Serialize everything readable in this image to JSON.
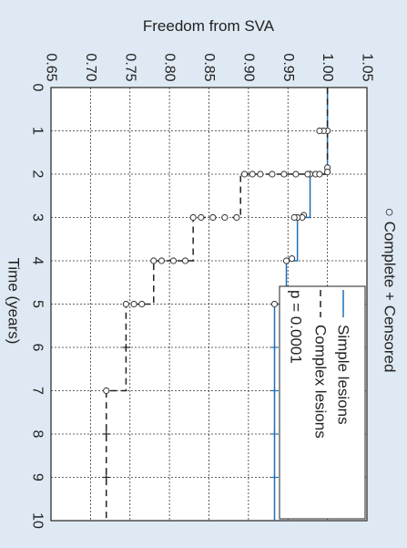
{
  "chart_data": {
    "type": "line",
    "title": "Freedom from SVA",
    "xlabel": "Time (years)",
    "ylabel": "",
    "xlim": [
      0,
      10
    ],
    "ylim": [
      0.65,
      1.05
    ],
    "x_ticks": [
      "0",
      "1",
      "2",
      "3",
      "4",
      "5",
      "6",
      "7",
      "8",
      "9",
      "10"
    ],
    "y_ticks": [
      "0.65",
      "0.70",
      "0.75",
      "0.80",
      "0.85",
      "0.90",
      "0.95",
      "1.00",
      "1.05"
    ],
    "grid": true,
    "orientation": "rotated 90 degrees clockwise",
    "marker_legend": [
      {
        "symbol": "○",
        "label": "Complete"
      },
      {
        "symbol": "+",
        "label": "Censored"
      }
    ],
    "legend": {
      "placement": "bottom-right",
      "entries": [
        "Simple lesions",
        "Complex lesions"
      ],
      "pvalue": "p = 0.0001"
    },
    "series": [
      {
        "name": "Simple lesions",
        "style": "solid",
        "color": "#1f6fb5",
        "steps": [
          [
            0,
            1.0
          ],
          [
            2.0,
            0.978
          ],
          [
            3.0,
            0.962
          ],
          [
            4.0,
            0.948
          ],
          [
            5.0,
            0.933
          ],
          [
            10.0,
            0.933
          ]
        ],
        "complete": [
          [
            1.0,
            1.0
          ],
          [
            1.85,
            1.0
          ],
          [
            1.95,
            1.0
          ],
          [
            2.0,
            0.985
          ],
          [
            2.0,
            0.978
          ],
          [
            2.95,
            0.97
          ],
          [
            3.0,
            0.968
          ],
          [
            3.0,
            0.962
          ],
          [
            3.0,
            0.958
          ],
          [
            3.95,
            0.955
          ],
          [
            4.0,
            0.948
          ],
          [
            5.0,
            0.933
          ]
        ],
        "censored": [
          [
            6.0,
            0.933
          ],
          [
            7.0,
            0.933
          ],
          [
            8.0,
            0.933
          ],
          [
            9.0,
            0.933
          ]
        ]
      },
      {
        "name": "Complex lesions",
        "style": "dashed",
        "color": "#222222",
        "steps": [
          [
            0,
            1.0
          ],
          [
            2.0,
            0.89
          ],
          [
            3.0,
            0.83
          ],
          [
            4.0,
            0.78
          ],
          [
            5.0,
            0.745
          ],
          [
            7.0,
            0.72
          ],
          [
            10.0,
            0.72
          ]
        ],
        "complete": [
          [
            1.0,
            0.995
          ],
          [
            1.0,
            0.99
          ],
          [
            2.0,
            0.99
          ],
          [
            2.0,
            0.975
          ],
          [
            2.0,
            0.96
          ],
          [
            2.0,
            0.945
          ],
          [
            2.0,
            0.93
          ],
          [
            2.0,
            0.915
          ],
          [
            2.0,
            0.905
          ],
          [
            2.0,
            0.895
          ],
          [
            3.0,
            0.885
          ],
          [
            3.0,
            0.87
          ],
          [
            3.0,
            0.855
          ],
          [
            3.0,
            0.84
          ],
          [
            3.0,
            0.83
          ],
          [
            4.0,
            0.82
          ],
          [
            4.0,
            0.805
          ],
          [
            4.0,
            0.79
          ],
          [
            4.0,
            0.78
          ],
          [
            5.0,
            0.765
          ],
          [
            5.0,
            0.755
          ],
          [
            5.0,
            0.745
          ],
          [
            7.0,
            0.72
          ]
        ],
        "censored": [
          [
            6.0,
            0.745
          ],
          [
            8.0,
            0.72
          ],
          [
            9.0,
            0.72
          ]
        ]
      }
    ],
    "colors": {
      "background": "#dfe9f3",
      "plot": "#ffffff",
      "accent": "#1f6fb5"
    }
  }
}
